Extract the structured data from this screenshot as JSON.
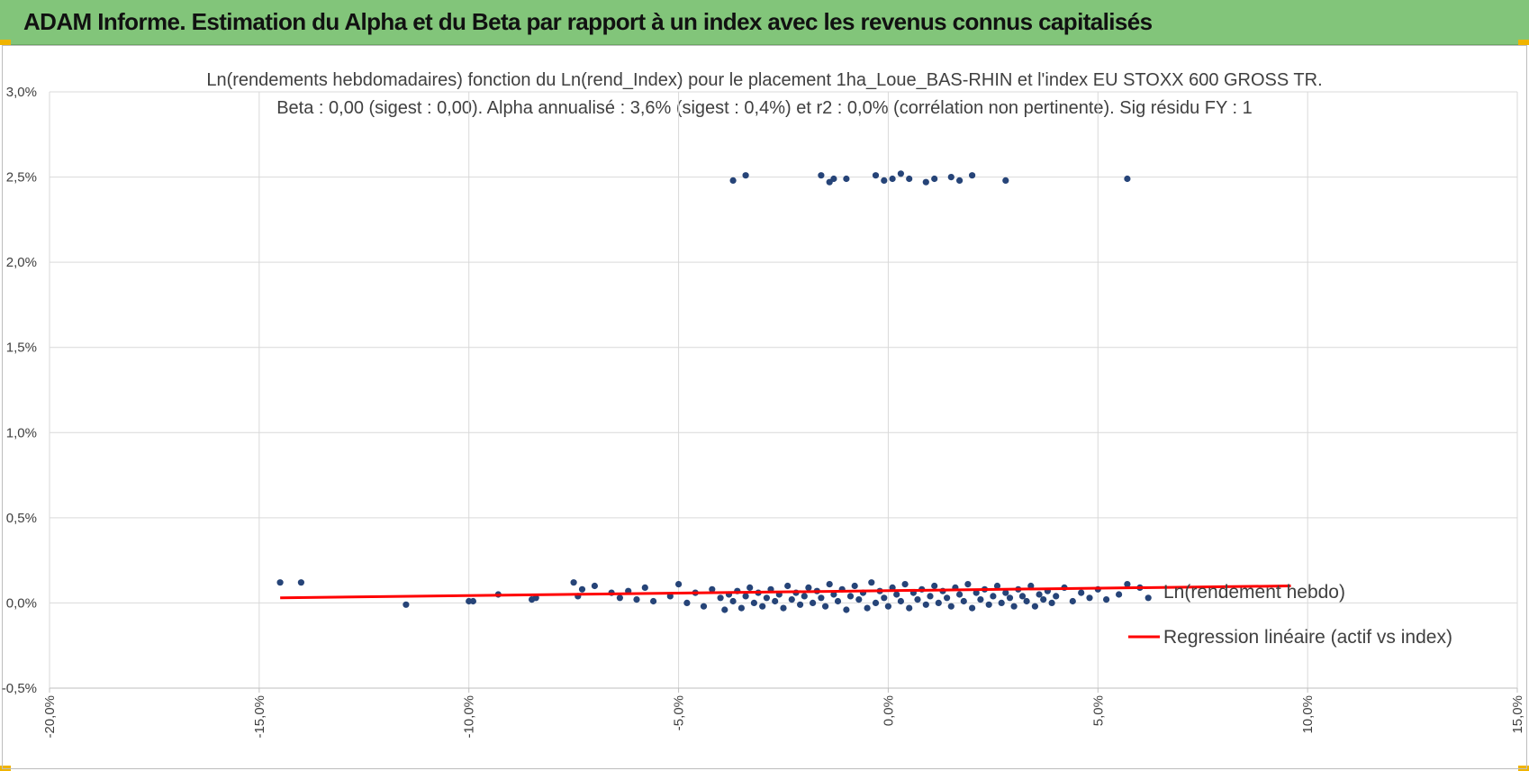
{
  "banner": {
    "title": "ADAM Informe. Estimation du Alpha et du Beta par rapport à un index avec les revenus connus capitalisés",
    "color": "#82c57a"
  },
  "chart_data": {
    "type": "scatter",
    "title": "Ln(rendements hebdomadaires) fonction du Ln(rend_Index) pour le placement 1ha_Loue_BAS-RHIN et l'index EU STOXX 600 GROSS TR.",
    "subtitle": "Beta : 0,00 (sigest : 0,00). Alpha annualisé : 3,6% (sigest : 0,4%) et r2 : 0,0% (corrélation non pertinente). Sig résidu FY : 1",
    "xlim": [
      -20,
      15
    ],
    "ylim": [
      -0.5,
      3.0
    ],
    "x_ticks": [
      "-20,0%",
      "-15,0%",
      "-10,0%",
      "-5,0%",
      "0,0%",
      "5,0%",
      "10,0%",
      "15,0%"
    ],
    "y_ticks": [
      "-0,5%",
      "0,0%",
      "0,5%",
      "1,0%",
      "1,5%",
      "2,0%",
      "2,5%",
      "3,0%"
    ],
    "grid": true,
    "legend_position": "right",
    "series": [
      {
        "name": "Ln(rendement hebdo)",
        "type": "scatter",
        "color": "#264478",
        "x": [
          -14.5,
          -14.0,
          -11.5,
          -10.0,
          -9.9,
          -9.3,
          -8.5,
          -8.4,
          -7.5,
          -7.4,
          -7.3,
          -7.0,
          -6.6,
          -6.4,
          -6.2,
          -6.0,
          -5.8,
          -5.6,
          -5.2,
          -5.0,
          -4.8,
          -4.6,
          -4.4,
          -4.2,
          -4.0,
          -3.9,
          -3.8,
          -3.7,
          -3.6,
          -3.5,
          -3.4,
          -3.3,
          -3.2,
          -3.1,
          -3.0,
          -2.9,
          -2.8,
          -2.7,
          -2.6,
          -2.5,
          -2.4,
          -2.3,
          -2.2,
          -2.1,
          -2.0,
          -1.9,
          -1.8,
          -1.7,
          -1.6,
          -1.5,
          -1.4,
          -1.3,
          -1.2,
          -1.1,
          -1.0,
          -0.9,
          -0.8,
          -0.7,
          -0.6,
          -0.5,
          -0.4,
          -0.3,
          -0.2,
          -0.1,
          0.0,
          0.1,
          0.2,
          0.3,
          0.4,
          0.5,
          0.6,
          0.7,
          0.8,
          0.9,
          1.0,
          1.1,
          1.2,
          1.3,
          1.4,
          1.5,
          1.6,
          1.7,
          1.8,
          1.9,
          2.0,
          2.1,
          2.2,
          2.3,
          2.4,
          2.5,
          2.6,
          2.7,
          2.8,
          2.9,
          3.0,
          3.1,
          3.2,
          3.3,
          3.4,
          3.5,
          3.6,
          3.7,
          3.8,
          3.9,
          4.0,
          4.2,
          4.4,
          4.6,
          4.8,
          5.0,
          5.2,
          5.5,
          5.7,
          6.0,
          6.2,
          -3.7,
          -3.4,
          -1.6,
          -1.4,
          -1.3,
          -1.0,
          -0.3,
          -0.1,
          0.1,
          0.3,
          0.5,
          0.9,
          1.1,
          1.5,
          1.7,
          2.0,
          2.8,
          5.7
        ],
        "y": [
          0.12,
          0.12,
          -0.01,
          0.01,
          0.01,
          0.05,
          0.02,
          0.03,
          0.12,
          0.04,
          0.08,
          0.1,
          0.06,
          0.03,
          0.07,
          0.02,
          0.09,
          0.01,
          0.04,
          0.11,
          0.0,
          0.06,
          -0.02,
          0.08,
          0.03,
          -0.04,
          0.05,
          0.01,
          0.07,
          -0.03,
          0.04,
          0.09,
          0.0,
          0.06,
          -0.02,
          0.03,
          0.08,
          0.01,
          0.05,
          -0.03,
          0.1,
          0.02,
          0.06,
          -0.01,
          0.04,
          0.09,
          0.0,
          0.07,
          0.03,
          -0.02,
          0.11,
          0.05,
          0.01,
          0.08,
          -0.04,
          0.04,
          0.1,
          0.02,
          0.06,
          -0.03,
          0.12,
          0.0,
          0.07,
          0.03,
          -0.02,
          0.09,
          0.05,
          0.01,
          0.11,
          -0.03,
          0.06,
          0.02,
          0.08,
          -0.01,
          0.04,
          0.1,
          0.0,
          0.07,
          0.03,
          -0.02,
          0.09,
          0.05,
          0.01,
          0.11,
          -0.03,
          0.06,
          0.02,
          0.08,
          -0.01,
          0.04,
          0.1,
          0.0,
          0.06,
          0.03,
          -0.02,
          0.08,
          0.04,
          0.01,
          0.1,
          -0.02,
          0.05,
          0.02,
          0.07,
          0.0,
          0.04,
          0.09,
          0.01,
          0.06,
          0.03,
          0.08,
          0.02,
          0.05,
          0.11,
          0.09,
          0.03,
          2.48,
          2.51,
          2.51,
          2.47,
          2.49,
          2.49,
          2.51,
          2.48,
          2.49,
          2.52,
          2.49,
          2.47,
          2.49,
          2.5,
          2.48,
          2.51,
          2.48,
          2.49
        ]
      },
      {
        "name": "Regression linéaire (actif vs index)",
        "type": "line",
        "color": "#ff0000",
        "x": [
          -14.5,
          9.6
        ],
        "y": [
          0.03,
          0.1
        ]
      }
    ]
  }
}
